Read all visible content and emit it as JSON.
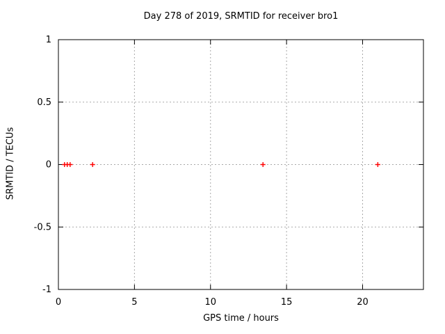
{
  "window": {
    "background": "#ffffff"
  },
  "chart_data": {
    "type": "scatter",
    "title": "Day 278 of 2019, SRMTID for receiver bro1",
    "xlabel": "GPS time / hours",
    "ylabel": "SRMTID / TECUs",
    "xlim": [
      0,
      24
    ],
    "ylim": [
      -1,
      1
    ],
    "xticks": [
      0,
      5,
      10,
      15,
      20
    ],
    "yticks": [
      1,
      0.5,
      0,
      -0.5,
      -1
    ],
    "grid": true,
    "grid_style": "dotted",
    "legend": "none",
    "series": [
      {
        "name": "SRMTID",
        "marker": "plus",
        "color": "#ff0000",
        "x": [
          0.4,
          0.58,
          0.77,
          2.25,
          13.45,
          21.0
        ],
        "y": [
          0,
          0,
          0,
          0,
          0,
          0
        ]
      }
    ]
  },
  "colors": {
    "background": "#ffffff",
    "frame": "#000000",
    "grid": "#a8a8a8",
    "text": "#000000",
    "marker": "#ff0000"
  }
}
